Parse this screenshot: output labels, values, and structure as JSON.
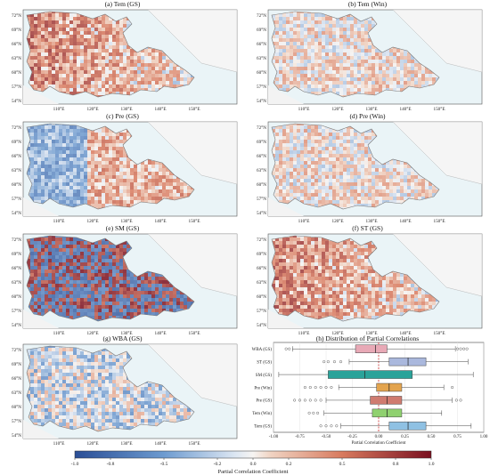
{
  "panels": [
    {
      "title": "(a) Tem (GS)",
      "scheme": "warm"
    },
    {
      "title": "(b) Tem (Win)",
      "scheme": "mild"
    },
    {
      "title": "(c) Pre (GS)",
      "scheme": "mixed"
    },
    {
      "title": "(d) Pre (Win)",
      "scheme": "mild"
    },
    {
      "title": "(e) SM (GS)",
      "scheme": "sm"
    },
    {
      "title": "(f) ST (GS)",
      "scheme": "warm"
    },
    {
      "title": "(g) WBA (GS)",
      "scheme": "cool"
    }
  ],
  "map_axes": {
    "lat_labels": [
      "72°N",
      "69°N",
      "66°N",
      "63°N",
      "60°N",
      "57°N",
      "54°N"
    ],
    "lon_labels": [
      "110°E",
      "120°E",
      "130°E",
      "140°E",
      "150°E"
    ]
  },
  "chart_data": {
    "type": "boxplot",
    "title": "(h) Distribution of Partial Correlations",
    "xlabel": "Partial Correlation Coefficient",
    "xlim": [
      -1.0,
      1.0
    ],
    "xticks": [
      "-1.00",
      "-0.75",
      "-0.50",
      "-0.25",
      "0.00",
      "0.25",
      "0.50",
      "0.75",
      "1.00"
    ],
    "reference_line": 0.0,
    "categories": [
      "WBA (GS)",
      "ST (GS)",
      "SM (GS)",
      "Pre (Win)",
      "Pre (GS)",
      "Tem (Win)",
      "Tem (GS)"
    ],
    "colors": [
      "#e8a9b6",
      "#aab8dd",
      "#2aa39a",
      "#e3a44e",
      "#cf7b70",
      "#8fd16f",
      "#8fc1e3"
    ],
    "boxes": [
      {
        "q1": -0.22,
        "median": -0.03,
        "q3": 0.08,
        "wlow": -0.82,
        "whigh": 0.73,
        "outliers_low": [
          -0.85,
          -0.88
        ],
        "outliers_high": [
          0.75,
          0.78,
          0.81,
          0.84
        ]
      },
      {
        "q1": 0.1,
        "median": 0.28,
        "q3": 0.45,
        "wlow": -0.28,
        "whigh": 0.85,
        "outliers_low": [
          -0.36,
          -0.42,
          -0.48,
          -0.52
        ],
        "outliers_high": []
      },
      {
        "q1": -0.48,
        "median": -0.13,
        "q3": 0.32,
        "wlow": -0.95,
        "whigh": 0.9,
        "outliers_low": [],
        "outliers_high": []
      },
      {
        "q1": -0.02,
        "median": 0.1,
        "q3": 0.22,
        "wlow": -0.38,
        "whigh": 0.62,
        "outliers_low": [
          -0.45,
          -0.5,
          -0.55,
          -0.6,
          -0.65,
          -0.7
        ],
        "outliers_high": [
          0.7
        ]
      },
      {
        "q1": -0.08,
        "median": 0.08,
        "q3": 0.22,
        "wlow": -0.5,
        "whigh": 0.7,
        "outliers_low": [
          -0.55,
          -0.6,
          -0.65,
          -0.7,
          -0.75,
          -0.8
        ],
        "outliers_high": [
          0.74,
          0.78
        ]
      },
      {
        "q1": -0.06,
        "median": 0.08,
        "q3": 0.22,
        "wlow": -0.52,
        "whigh": 0.6,
        "outliers_low": [
          -0.58,
          -0.62,
          -0.66
        ],
        "outliers_high": []
      },
      {
        "q1": 0.1,
        "median": 0.28,
        "q3": 0.45,
        "wlow": -0.36,
        "whigh": 0.88,
        "outliers_low": [
          -0.4,
          -0.45,
          -0.5,
          -0.55
        ],
        "outliers_high": []
      }
    ]
  },
  "colorbar": {
    "label": "Partial Correlation Coefficient",
    "ticks": [
      "-1.0",
      "-0.8",
      "-0.5",
      "-0.2",
      "0.0",
      "0.2",
      "0.5",
      "0.8",
      "1.0"
    ]
  }
}
